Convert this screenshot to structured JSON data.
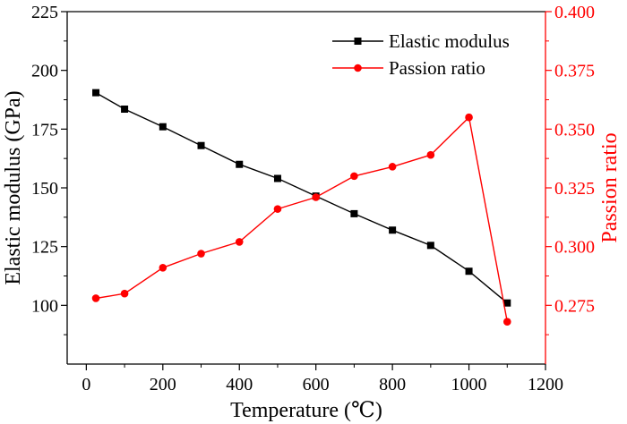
{
  "chart_data": {
    "type": "line",
    "title": "",
    "xlabel": "Temperature (℃)",
    "ylabel": "Elastic modulus (GPa)",
    "y2label": "Passion ratio",
    "xlim": [
      -50,
      1200
    ],
    "ylim": [
      75,
      225
    ],
    "y2lim": [
      0.25,
      0.4
    ],
    "x_ticks": [
      "0",
      "200",
      "400",
      "600",
      "800",
      "1000",
      "1200"
    ],
    "y_ticks": [
      "100",
      "125",
      "150",
      "175",
      "200",
      "225"
    ],
    "y2_ticks": [
      "0.275",
      "0.300",
      "0.325",
      "0.350",
      "0.375",
      "0.400"
    ],
    "legend_position": "top-right",
    "series": [
      {
        "name": "Elastic modulus",
        "axis": "left",
        "color": "#000000",
        "marker": "square",
        "x": [
          25,
          100,
          200,
          300,
          400,
          500,
          600,
          700,
          800,
          900,
          1000,
          1100
        ],
        "values": [
          190.5,
          183.5,
          176,
          168,
          160,
          154,
          146.5,
          139,
          132,
          125.5,
          114.5,
          101
        ]
      },
      {
        "name": "Passion ratio",
        "axis": "right",
        "color": "#ff0000",
        "marker": "circle",
        "x": [
          25,
          100,
          200,
          300,
          400,
          500,
          600,
          700,
          800,
          900,
          1000,
          1100
        ],
        "values": [
          0.278,
          0.28,
          0.291,
          0.297,
          0.302,
          0.316,
          0.321,
          0.33,
          0.334,
          0.339,
          0.355,
          0.268
        ]
      }
    ]
  }
}
